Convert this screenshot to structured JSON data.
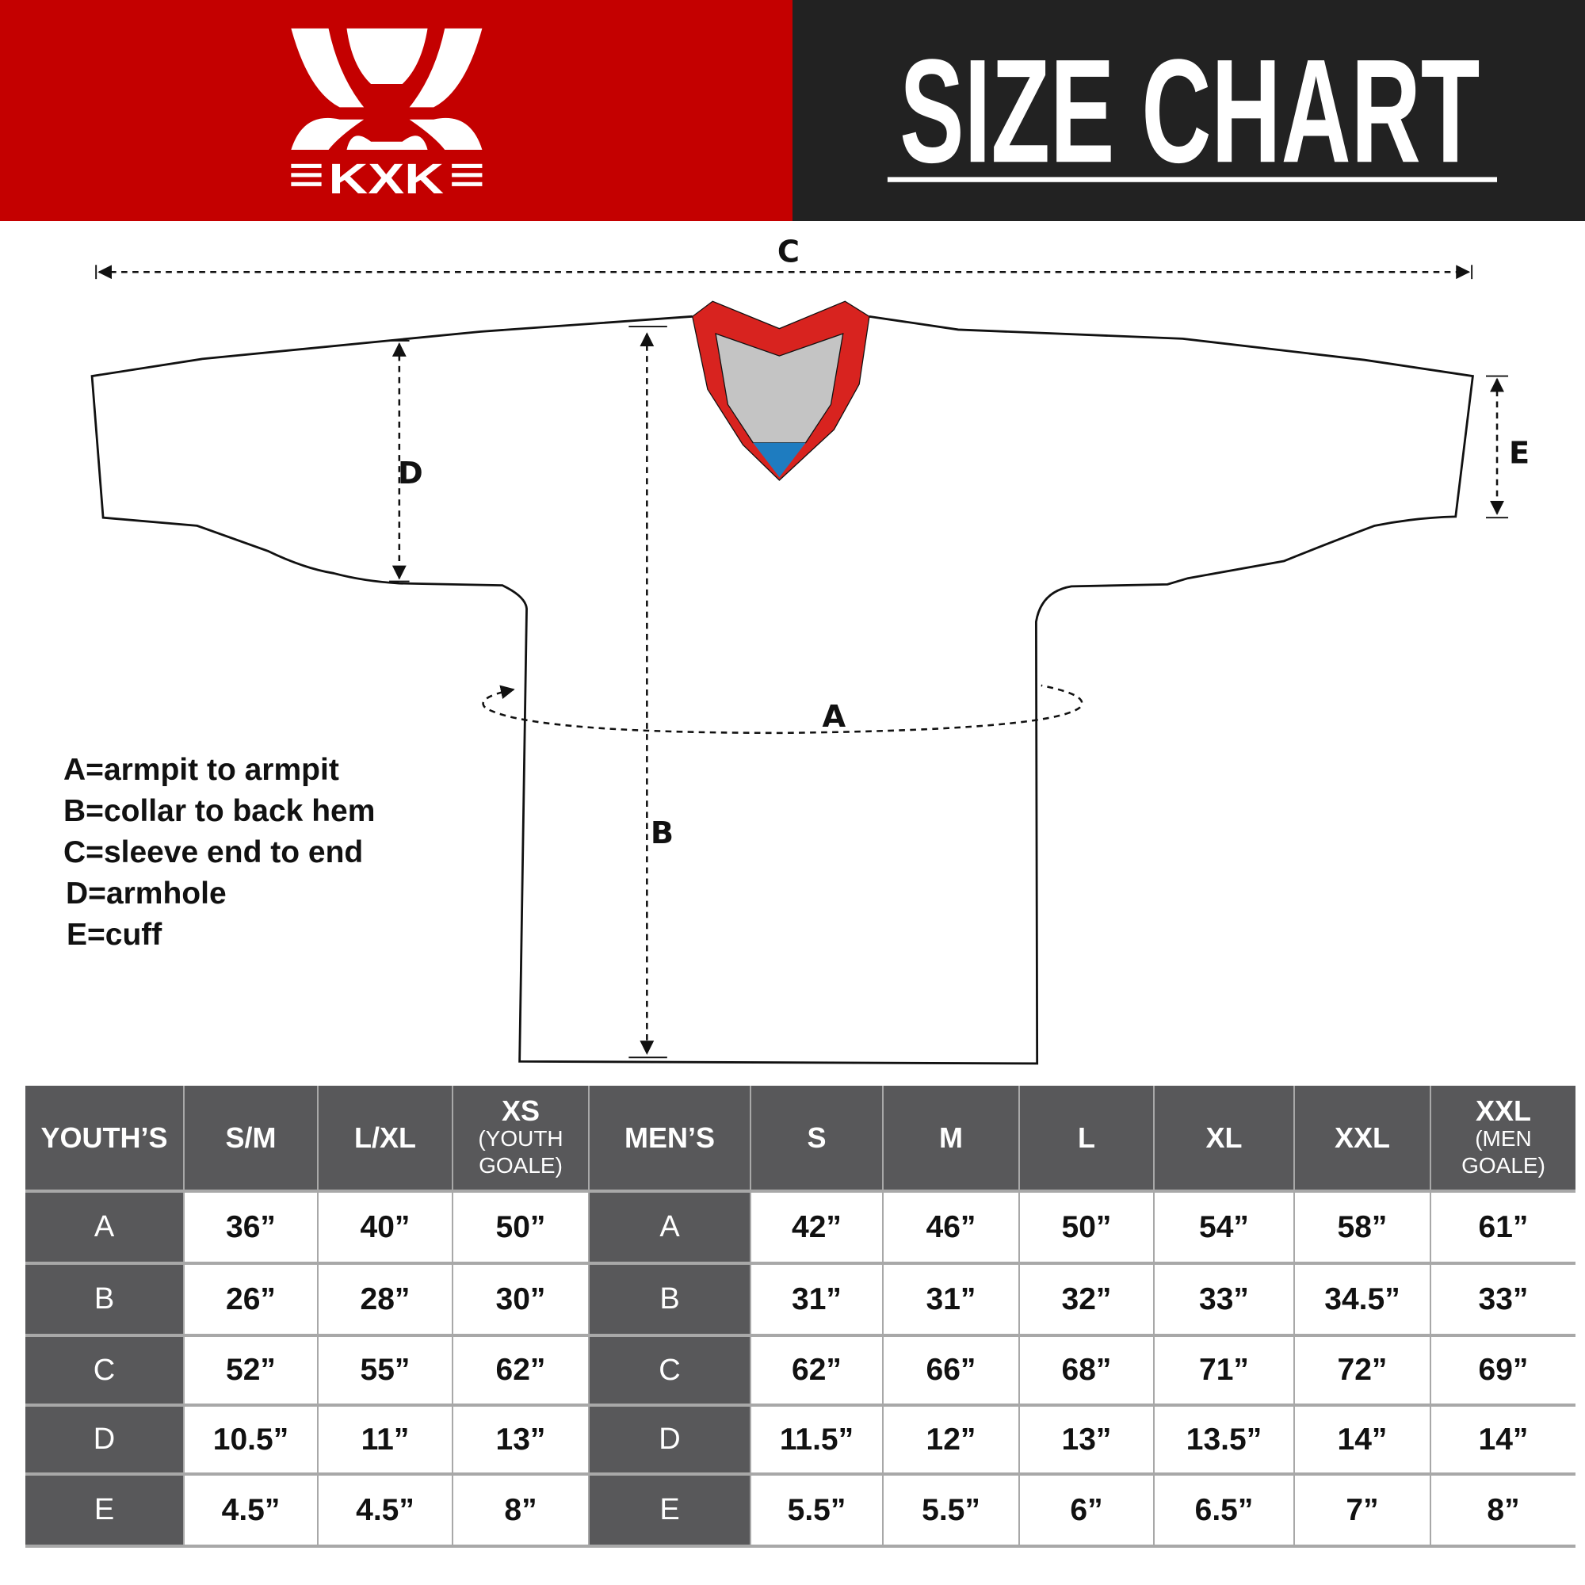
{
  "header": {
    "logo_text": "KXK",
    "title": "SIZE CHART",
    "colors": {
      "brand_red": "#c40000",
      "dark": "#222222",
      "table_gray": "#58585a"
    }
  },
  "diagram": {
    "labels": {
      "a": "A",
      "b": "B",
      "c": "C",
      "d": "D",
      "e": "E"
    },
    "collar_colors": {
      "trim": "#d8231f",
      "inner": "#c4c4c4",
      "tag": "#1e7cc0"
    }
  },
  "legend": [
    "A=armpit to armpit",
    "B=collar to back hem",
    "C=sleeve end to end",
    "D=armhole",
    "E=cuff"
  ],
  "table": {
    "headers": [
      {
        "main": "YOUTH’S",
        "sub": ""
      },
      {
        "main": "S/M",
        "sub": ""
      },
      {
        "main": "L/XL",
        "sub": ""
      },
      {
        "main": "XS",
        "sub": "(YOUTH GOALE)"
      },
      {
        "main": "MEN’S",
        "sub": ""
      },
      {
        "main": "S",
        "sub": ""
      },
      {
        "main": "M",
        "sub": ""
      },
      {
        "main": "L",
        "sub": ""
      },
      {
        "main": "XL",
        "sub": ""
      },
      {
        "main": "XXL",
        "sub": ""
      },
      {
        "main": "XXL",
        "sub": "(MEN GOALE)"
      }
    ],
    "rows": [
      {
        "youth_label": "A",
        "youth": [
          "36”",
          "40”",
          "50”"
        ],
        "men_label": "A",
        "men": [
          "42”",
          "46”",
          "50”",
          "54”",
          "58”",
          "61”"
        ]
      },
      {
        "youth_label": "B",
        "youth": [
          "26”",
          "28”",
          "30”"
        ],
        "men_label": "B",
        "men": [
          "31”",
          "31”",
          "32”",
          "33”",
          "34.5”",
          "33”"
        ]
      },
      {
        "youth_label": "C",
        "youth": [
          "52”",
          "55”",
          "62”"
        ],
        "men_label": "C",
        "men": [
          "62”",
          "66”",
          "68”",
          "71”",
          "72”",
          "69”"
        ]
      },
      {
        "youth_label": "D",
        "youth": [
          "10.5”",
          "11”",
          "13”"
        ],
        "men_label": "D",
        "men": [
          "11.5”",
          "12”",
          "13”",
          "13.5”",
          "14”",
          "14”"
        ]
      },
      {
        "youth_label": "E",
        "youth": [
          "4.5”",
          "4.5”",
          "8”"
        ],
        "men_label": "E",
        "men": [
          "5.5”",
          "5.5”",
          "6”",
          "6.5”",
          "7”",
          "8”"
        ]
      }
    ]
  }
}
